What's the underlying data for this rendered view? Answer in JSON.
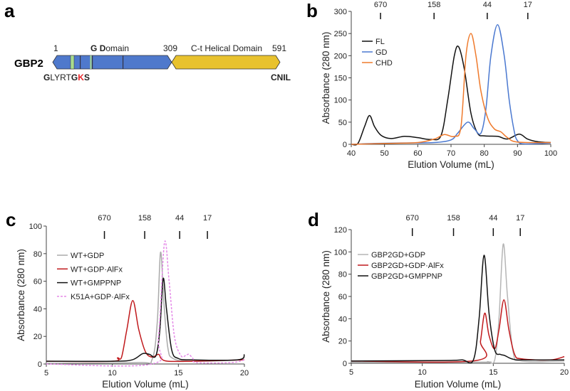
{
  "panel_a": {
    "label": "a",
    "protein": "GBP2",
    "start": "1",
    "gdomain_g": "G",
    "gdomain_d": "D",
    "gdomain_rest": "omain",
    "boundary": "309",
    "helical": "C-t Helical Domain",
    "end": "591",
    "motif_parts": [
      {
        "t": "G",
        "bold": true,
        "red": false
      },
      {
        "t": "LYRT",
        "bold": false,
        "red": false
      },
      {
        "t": "G",
        "bold": true,
        "red": false
      },
      {
        "t": "K",
        "bold": true,
        "red": true
      },
      {
        "t": "S",
        "bold": true,
        "red": false
      }
    ],
    "cterm": "CNIL",
    "colors": {
      "gdomain": "#4f79cc",
      "helical": "#e8c22e",
      "motif": "#a9dc8f"
    }
  },
  "chart_data": [
    {
      "id": "b",
      "panel_label": "b",
      "type": "line",
      "xlabel": "Elution Volume (mL)",
      "ylabel": "Absorbance (280 nm)",
      "xlim": [
        40,
        100
      ],
      "ylim": [
        0,
        300
      ],
      "xticks": [
        40,
        50,
        60,
        70,
        80,
        90,
        100
      ],
      "yticks": [
        0,
        50,
        100,
        150,
        200,
        250,
        300
      ],
      "markers": [
        {
          "label": "670",
          "x": 48.8
        },
        {
          "label": "158",
          "x": 64.9
        },
        {
          "label": "44",
          "x": 80.9
        },
        {
          "label": "17",
          "x": 93.1
        }
      ],
      "legend": "top-left",
      "series": [
        {
          "name": "FL",
          "color": "#111111",
          "dash": false,
          "points": [
            [
              40,
              0
            ],
            [
              42,
              2
            ],
            [
              44,
              40
            ],
            [
              45.5,
              65
            ],
            [
              47,
              40
            ],
            [
              49,
              20
            ],
            [
              52,
              13
            ],
            [
              56,
              18
            ],
            [
              60,
              15
            ],
            [
              64,
              11
            ],
            [
              67,
              20
            ],
            [
              69,
              100
            ],
            [
              71,
              200
            ],
            [
              72.3,
              220
            ],
            [
              74,
              170
            ],
            [
              76,
              70
            ],
            [
              78,
              25
            ],
            [
              80,
              19
            ],
            [
              84,
              18
            ],
            [
              87,
              12
            ],
            [
              90.5,
              23
            ],
            [
              93,
              12
            ],
            [
              96,
              6
            ],
            [
              100,
              4
            ]
          ]
        },
        {
          "name": "GD",
          "color": "#4a78d0",
          "dash": false,
          "points": [
            [
              40,
              0
            ],
            [
              47,
              2
            ],
            [
              55,
              3
            ],
            [
              65,
              4
            ],
            [
              70,
              10
            ],
            [
              72,
              25
            ],
            [
              75,
              50
            ],
            [
              77,
              35
            ],
            [
              79,
              25
            ],
            [
              80.5,
              80
            ],
            [
              82,
              200
            ],
            [
              84,
              270
            ],
            [
              86,
              200
            ],
            [
              87.5,
              100
            ],
            [
              89,
              30
            ],
            [
              90,
              8
            ],
            [
              92,
              1
            ],
            [
              100,
              3
            ]
          ]
        },
        {
          "name": "CHD",
          "color": "#ef7a2c",
          "dash": false,
          "points": [
            [
              40,
              0
            ],
            [
              50,
              2
            ],
            [
              60,
              4
            ],
            [
              65,
              12
            ],
            [
              68,
              22
            ],
            [
              71,
              18
            ],
            [
              73,
              40
            ],
            [
              74.5,
              200
            ],
            [
              76,
              250
            ],
            [
              77.5,
              200
            ],
            [
              79,
              120
            ],
            [
              81,
              60
            ],
            [
              83,
              35
            ],
            [
              85,
              28
            ],
            [
              87,
              15
            ],
            [
              90,
              5
            ],
            [
              100,
              4
            ]
          ]
        }
      ]
    },
    {
      "id": "c",
      "panel_label": "c",
      "type": "line",
      "xlabel": "Elution Volume (mL)",
      "ylabel": "Absorbance (280 nm)",
      "xlim": [
        5,
        20
      ],
      "ylim": [
        0,
        100
      ],
      "xticks": [
        5,
        10,
        15,
        20
      ],
      "yticks": [
        0,
        20,
        40,
        60,
        80,
        100
      ],
      "markers": [
        {
          "label": "670",
          "x": 9.4
        },
        {
          "label": "158",
          "x": 12.45
        },
        {
          "label": "44",
          "x": 15.1
        },
        {
          "label": "17",
          "x": 17.2
        }
      ],
      "legend": "top-left",
      "series": [
        {
          "name": "WT+GDP",
          "color": "#aaaaaa",
          "dash": false,
          "points": [
            [
              5,
              0.5
            ],
            [
              12,
              1
            ],
            [
              13,
              3
            ],
            [
              13.4,
              30
            ],
            [
              13.65,
              81
            ],
            [
              13.9,
              45
            ],
            [
              14.2,
              12
            ],
            [
              14.6,
              4
            ],
            [
              16,
              2
            ],
            [
              19.5,
              3
            ],
            [
              20,
              6
            ]
          ]
        },
        {
          "name": "WT+GDP·AlFx",
          "color": "#c0191c",
          "dash": false,
          "points": [
            [
              5,
              2
            ],
            [
              10,
              2
            ],
            [
              10.4,
              4.5
            ],
            [
              10.7,
              5
            ],
            [
              11.1,
              25
            ],
            [
              11.55,
              46
            ],
            [
              12,
              25
            ],
            [
              12.5,
              9
            ],
            [
              13,
              5
            ],
            [
              13.5,
              7
            ],
            [
              13.7,
              4
            ],
            [
              14.2,
              2
            ],
            [
              16,
              2
            ],
            [
              20,
              3
            ]
          ]
        },
        {
          "name": "WT+GMPPNP",
          "color": "#111111",
          "dash": false,
          "points": [
            [
              5,
              2
            ],
            [
              10,
              2
            ],
            [
              11.5,
              3
            ],
            [
              12.3,
              7.5
            ],
            [
              12.8,
              7
            ],
            [
              13.3,
              6
            ],
            [
              13.6,
              25
            ],
            [
              13.85,
              62
            ],
            [
              14.1,
              40
            ],
            [
              14.5,
              10
            ],
            [
              15,
              4
            ],
            [
              16,
              3
            ],
            [
              19.5,
              3
            ],
            [
              20,
              7
            ]
          ]
        },
        {
          "name": "K51A+GDP·AlFx",
          "color": "#e58be8",
          "dash": true,
          "points": [
            [
              5,
              0
            ],
            [
              13,
              0
            ],
            [
              13.5,
              20
            ],
            [
              13.95,
              88
            ],
            [
              14.3,
              60
            ],
            [
              14.7,
              20
            ],
            [
              15.2,
              6
            ],
            [
              15.6,
              6.5
            ],
            [
              15.8,
              7
            ],
            [
              16.1,
              4
            ],
            [
              16.4,
              1
            ],
            [
              19,
              1
            ],
            [
              20,
              3
            ]
          ]
        }
      ]
    },
    {
      "id": "d",
      "panel_label": "d",
      "type": "line",
      "xlabel": "Elution Volume (mL)",
      "ylabel": "Absorbance (280 nm)",
      "xlim": [
        5,
        20
      ],
      "ylim": [
        0,
        120
      ],
      "xticks": [
        5,
        10,
        15,
        20
      ],
      "yticks": [
        0,
        20,
        40,
        60,
        80,
        100,
        120
      ],
      "markers": [
        {
          "label": "670",
          "x": 9.3
        },
        {
          "label": "158",
          "x": 12.2
        },
        {
          "label": "44",
          "x": 15.0
        },
        {
          "label": "17",
          "x": 16.9
        }
      ],
      "legend": "top-left",
      "series": [
        {
          "name": "GBP2GD+GDP",
          "color": "#b5b5b5",
          "dash": false,
          "points": [
            [
              5,
              1
            ],
            [
              14,
              1
            ],
            [
              14.6,
              1.5
            ],
            [
              15.1,
              3
            ],
            [
              15.4,
              40
            ],
            [
              15.7,
              107
            ],
            [
              16,
              60
            ],
            [
              16.4,
              10
            ],
            [
              17,
              2
            ],
            [
              20,
              2
            ]
          ]
        },
        {
          "name": "GBP2GD+GDP·AlFx",
          "color": "#c0191c",
          "dash": false,
          "points": [
            [
              5,
              2
            ],
            [
              13.8,
              2.5
            ],
            [
              14.1,
              20
            ],
            [
              14.4,
              45
            ],
            [
              14.7,
              25
            ],
            [
              15.1,
              13
            ],
            [
              15.4,
              30
            ],
            [
              15.75,
              57
            ],
            [
              16.1,
              30
            ],
            [
              16.5,
              8
            ],
            [
              17,
              4
            ],
            [
              19,
              3
            ],
            [
              20,
              6
            ]
          ]
        },
        {
          "name": "GBP2GD+GMPPNP",
          "color": "#111111",
          "dash": false,
          "points": [
            [
              5,
              2
            ],
            [
              11.5,
              2.5
            ],
            [
              12.8,
              3
            ],
            [
              13.6,
              3
            ],
            [
              14,
              40
            ],
            [
              14.35,
              97
            ],
            [
              14.7,
              45
            ],
            [
              15.1,
              12
            ],
            [
              15.5,
              8
            ],
            [
              15.8,
              7
            ],
            [
              16.3,
              4
            ],
            [
              17,
              3
            ],
            [
              20,
              3
            ]
          ]
        }
      ]
    }
  ]
}
